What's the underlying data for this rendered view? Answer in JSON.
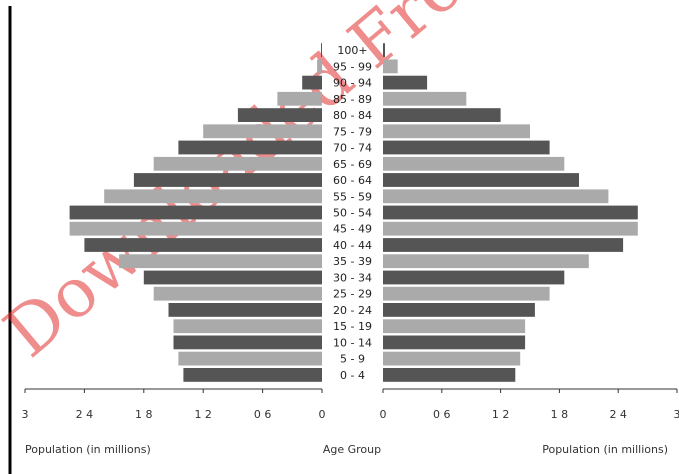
{
  "chart_data": {
    "type": "bar",
    "orientation": "horizontal",
    "layout": "population-pyramid",
    "age_groups": [
      "0 - 4",
      "5 - 9",
      "10 - 14",
      "15 - 19",
      "20 - 24",
      "25 - 29",
      "30 - 34",
      "35 - 39",
      "40 - 44",
      "45 - 49",
      "50 - 54",
      "55 - 59",
      "60 - 64",
      "65 - 69",
      "70 - 74",
      "75 - 79",
      "80 - 84",
      "85 - 89",
      "90 - 94",
      "95 - 99",
      "100+"
    ],
    "series": [
      {
        "side": "left",
        "values": [
          1.4,
          1.45,
          1.5,
          1.5,
          1.55,
          1.7,
          1.8,
          2.05,
          2.4,
          2.55,
          2.55,
          2.2,
          1.9,
          1.7,
          1.45,
          1.2,
          0.85,
          0.45,
          0.2,
          0.05,
          0.01
        ]
      },
      {
        "side": "right",
        "values": [
          1.35,
          1.4,
          1.45,
          1.45,
          1.55,
          1.7,
          1.85,
          2.1,
          2.45,
          2.6,
          2.6,
          2.3,
          2.0,
          1.85,
          1.7,
          1.5,
          1.2,
          0.85,
          0.45,
          0.15,
          0.02
        ]
      }
    ],
    "xlim": [
      0,
      3
    ],
    "left_ticks": [
      "3",
      "2 4",
      "1 8",
      "1 2",
      "0 6",
      "0"
    ],
    "right_ticks": [
      "0",
      "0 6",
      "1 2",
      "1 8",
      "2 4",
      "3"
    ],
    "left_xlabel": "Population (in millions)",
    "center_label": "Age Group",
    "right_xlabel": "Population (in millions)",
    "bar_colors": {
      "dark": "#555555",
      "light": "#aaaaaa"
    },
    "grid": false
  },
  "watermark": {
    "text": "Downloaded From"
  }
}
